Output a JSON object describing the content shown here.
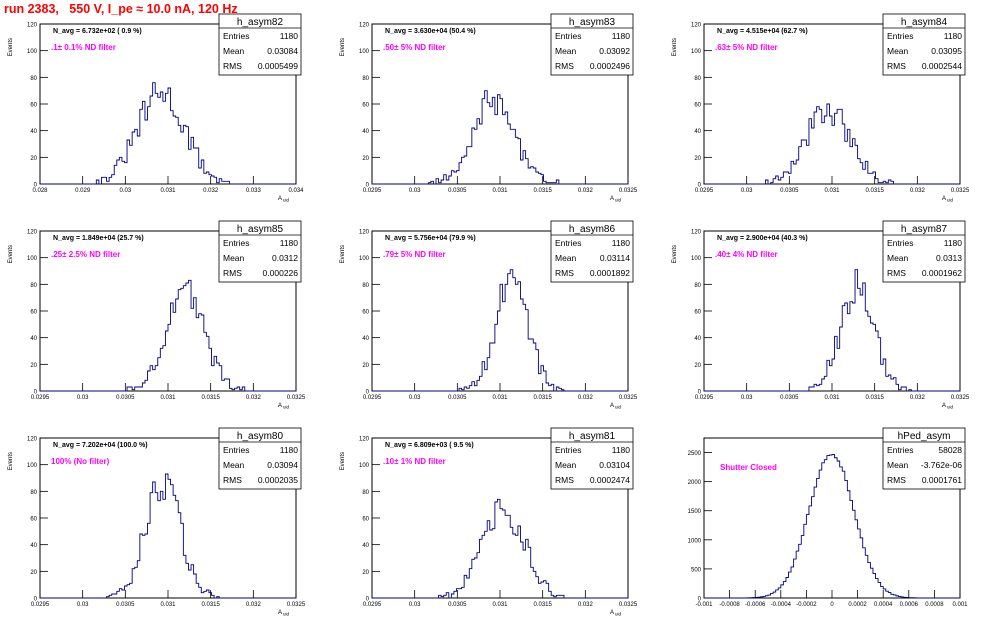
{
  "run_title": "run 2383,   550 V, I_pe ≈ 10.0 nA, 120 Hz",
  "colors": {
    "title": "#ff0000",
    "annotation": "#ff00ff",
    "histogram": "#000080",
    "axis": "#000000"
  },
  "chart_data": [
    {
      "type": "histogram",
      "name": "h_asym82",
      "stats": [
        {
          "label": "Entries",
          "value": "1180"
        },
        {
          "label": "Mean",
          "value": "0.03084"
        },
        {
          "label": "RMS",
          "value": "0.0005499"
        }
      ],
      "navg": "N_avg = 6.732e+02 ( 0.9 %)",
      "filter": ".1± 0.1% ND filter",
      "xlim": [
        0.028,
        0.034
      ],
      "ylim": [
        0,
        120
      ],
      "xticks": [
        "0.028",
        "0.029",
        "0.03",
        "0.031",
        "0.032",
        "0.033",
        "0.034"
      ],
      "yticks": [
        "0",
        "20",
        "40",
        "60",
        "80",
        "100",
        "120"
      ],
      "xlabel": "A_uid",
      "ylabel": "Events",
      "mean": 0.03084,
      "rms": 0.0005499,
      "peak": 68
    },
    {
      "type": "histogram",
      "name": "h_asym83",
      "stats": [
        {
          "label": "Entries",
          "value": "1180"
        },
        {
          "label": "Mean",
          "value": "0.03092"
        },
        {
          "label": "RMS",
          "value": "0.0002496"
        }
      ],
      "navg": "N_avg = 3.630e+04 (50.4 %)",
      "filter": ".50± 5% ND filter",
      "xlim": [
        0.0295,
        0.0325
      ],
      "ylim": [
        0,
        120
      ],
      "xticks": [
        "0.0295",
        "0.03",
        "0.0305",
        "0.031",
        "0.0315",
        "0.032",
        "0.0325"
      ],
      "yticks": [
        "0",
        "20",
        "40",
        "60",
        "80",
        "100",
        "120"
      ],
      "xlabel": "A_uid",
      "ylabel": "Events",
      "mean": 0.03092,
      "rms": 0.0002496,
      "peak": 62
    },
    {
      "type": "histogram",
      "name": "h_asym84",
      "stats": [
        {
          "label": "Entries",
          "value": "1180"
        },
        {
          "label": "Mean",
          "value": "0.03095"
        },
        {
          "label": "RMS",
          "value": "0.0002544"
        }
      ],
      "navg": "N_avg = 4.515e+04 (62.7 %)",
      "filter": ".63± 5% ND filter",
      "xlim": [
        0.0295,
        0.0325
      ],
      "ylim": [
        0,
        120
      ],
      "xticks": [
        "0.0295",
        "0.03",
        "0.0305",
        "0.031",
        "0.0315",
        "0.032",
        "0.0325"
      ],
      "yticks": [
        "0",
        "20",
        "40",
        "60",
        "80",
        "100",
        "120"
      ],
      "xlabel": "A_uid",
      "ylabel": "Events",
      "mean": 0.03095,
      "rms": 0.0002544,
      "peak": 57
    },
    {
      "type": "histogram",
      "name": "h_asym85",
      "stats": [
        {
          "label": "Entries",
          "value": "1180"
        },
        {
          "label": "Mean",
          "value": "0.0312"
        },
        {
          "label": "RMS",
          "value": "0.000226"
        }
      ],
      "navg": "N_avg = 1.849e+04 (25.7 %)",
      "filter": ".25± 2.5% ND filter",
      "xlim": [
        0.0295,
        0.0325
      ],
      "ylim": [
        0,
        120
      ],
      "xticks": [
        "0.0295",
        "0.03",
        "0.0305",
        "0.031",
        "0.0315",
        "0.032",
        "0.0325"
      ],
      "yticks": [
        "0",
        "20",
        "40",
        "60",
        "80",
        "100",
        "120"
      ],
      "xlabel": "A_uid",
      "ylabel": "Events",
      "mean": 0.0312,
      "rms": 0.000226,
      "peak": 75
    },
    {
      "type": "histogram",
      "name": "h_asym86",
      "stats": [
        {
          "label": "Entries",
          "value": "1180"
        },
        {
          "label": "Mean",
          "value": "0.03114"
        },
        {
          "label": "RMS",
          "value": "0.0001892"
        }
      ],
      "navg": "N_avg = 5.756e+04 (79.9 %)",
      "filter": ".79± 5% ND filter",
      "xlim": [
        0.0295,
        0.0325
      ],
      "ylim": [
        0,
        120
      ],
      "xticks": [
        "0.0295",
        "0.03",
        "0.0305",
        "0.031",
        "0.0315",
        "0.032",
        "0.0325"
      ],
      "yticks": [
        "0",
        "20",
        "40",
        "60",
        "80",
        "100",
        "120"
      ],
      "xlabel": "A_uid",
      "ylabel": "Events",
      "mean": 0.03114,
      "rms": 0.0001892,
      "peak": 85
    },
    {
      "type": "histogram",
      "name": "h_asym87",
      "stats": [
        {
          "label": "Entries",
          "value": "1180"
        },
        {
          "label": "Mean",
          "value": "0.0313"
        },
        {
          "label": "RMS",
          "value": "0.0001962"
        }
      ],
      "navg": "N_avg = 2.900e+04 (40.3 %)",
      "filter": ".40± 4% ND filter",
      "xlim": [
        0.0295,
        0.0325
      ],
      "ylim": [
        0,
        120
      ],
      "xticks": [
        "0.0295",
        "0.03",
        "0.0305",
        "0.031",
        "0.0315",
        "0.032",
        "0.0325"
      ],
      "yticks": [
        "0",
        "20",
        "40",
        "60",
        "80",
        "100",
        "120"
      ],
      "xlabel": "A_uid",
      "ylabel": "Events",
      "mean": 0.0313,
      "rms": 0.0001962,
      "peak": 80
    },
    {
      "type": "histogram",
      "name": "h_asym80",
      "stats": [
        {
          "label": "Entries",
          "value": "1180"
        },
        {
          "label": "Mean",
          "value": "0.03094"
        },
        {
          "label": "RMS",
          "value": "0.0002035"
        }
      ],
      "navg": "N_avg = 7.202e+04 (100.0 %)",
      "filter": "100% (No filter)",
      "xlim": [
        0.0295,
        0.0325
      ],
      "ylim": [
        0,
        120
      ],
      "xticks": [
        "0.0295",
        "0.03",
        "0.0305",
        "0.031",
        "0.0315",
        "0.032",
        "0.0325"
      ],
      "yticks": [
        "0",
        "20",
        "40",
        "60",
        "80",
        "100",
        "120"
      ],
      "xlabel": "A_uid",
      "ylabel": "Events",
      "mean": 0.03094,
      "rms": 0.0002035,
      "peak": 86
    },
    {
      "type": "histogram",
      "name": "h_asym81",
      "stats": [
        {
          "label": "Entries",
          "value": "1180"
        },
        {
          "label": "Mean",
          "value": "0.03104"
        },
        {
          "label": "RMS",
          "value": "0.0002474"
        }
      ],
      "navg": "N_avg = 6.809e+03 ( 9.5 %)",
      "filter": ".10± 1% ND filter",
      "xlim": [
        0.0295,
        0.0325
      ],
      "ylim": [
        0,
        120
      ],
      "xticks": [
        "0.0295",
        "0.03",
        "0.0305",
        "0.031",
        "0.0315",
        "0.032",
        "0.0325"
      ],
      "yticks": [
        "0",
        "20",
        "40",
        "60",
        "80",
        "100",
        "120"
      ],
      "xlabel": "A_uid",
      "ylabel": "Events",
      "mean": 0.03104,
      "rms": 0.0002474,
      "peak": 66
    },
    {
      "type": "histogram",
      "name": "hPed_asym",
      "stats": [
        {
          "label": "Entries",
          "value": "58028"
        },
        {
          "label": "Mean",
          "value": "-3.762e-06"
        },
        {
          "label": "RMS",
          "value": "0.0001761"
        }
      ],
      "navg": "",
      "filter": "Shutter Closed",
      "xlim": [
        -0.001,
        0.001
      ],
      "ylim": [
        0,
        2750
      ],
      "xticks": [
        "-0.001",
        "-0.0008",
        "-0.0006",
        "-0.0004",
        "-0.0002",
        "0",
        "0.0002",
        "0.0004",
        "0.0006",
        "0.0008",
        "0.001"
      ],
      "yticks": [
        "0",
        "500",
        "1000",
        "1500",
        "2000",
        "2500"
      ],
      "xlabel": "",
      "ylabel": "",
      "mean": -3.762e-06,
      "rms": 0.0001761,
      "peak": 2480
    }
  ]
}
